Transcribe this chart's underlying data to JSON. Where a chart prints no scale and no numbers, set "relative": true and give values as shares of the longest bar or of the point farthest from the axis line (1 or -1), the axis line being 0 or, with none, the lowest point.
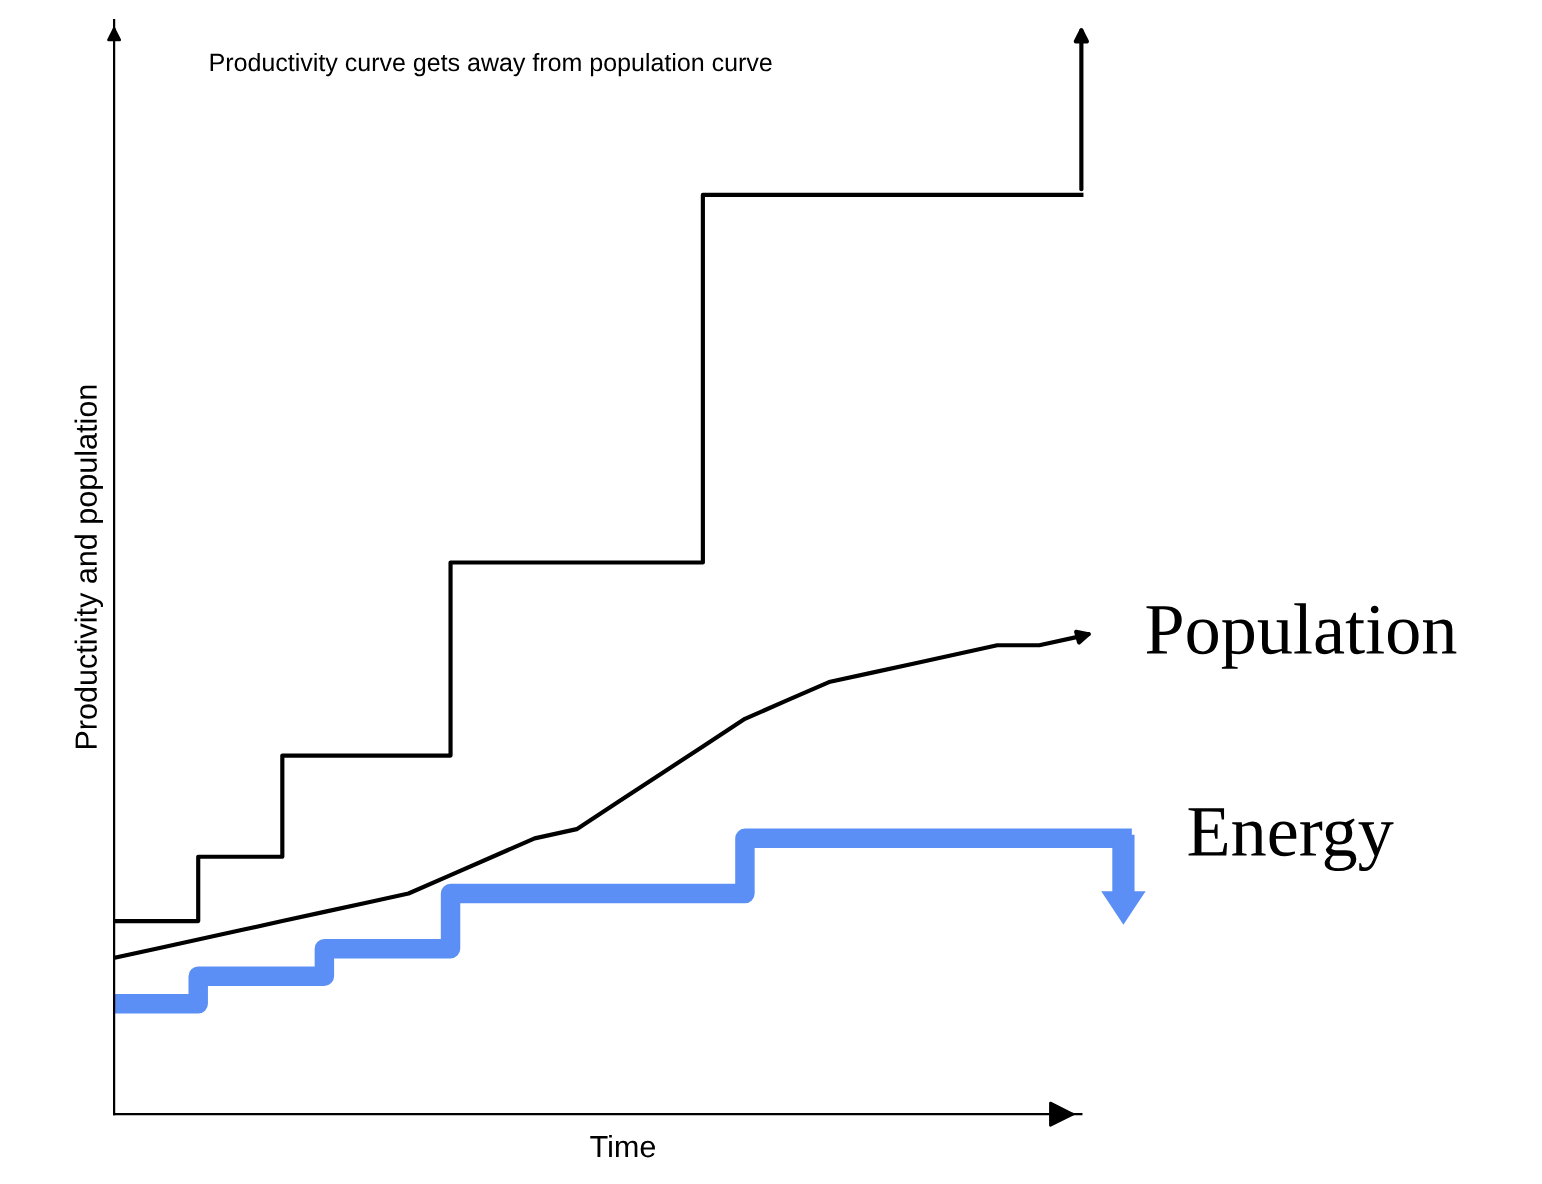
{
  "chart_data": {
    "type": "step",
    "relative": true,
    "xlabel": "Time",
    "ylabel": "Productivity and population",
    "annotations": [
      "Productivity curve gets away from population curve"
    ],
    "categories": [
      null,
      null,
      null,
      null,
      null,
      null,
      null,
      null,
      null,
      null,
      null,
      null,
      null,
      null,
      null,
      null,
      null,
      null,
      null,
      null,
      null,
      null,
      null,
      null,
      null
    ],
    "legend": "right",
    "marker": "none",
    "line_style": "solid",
    "series": [
      {
        "color": "#000000",
        "values": [
          0.21,
          0.21,
          0.28,
          0.28,
          0.39,
          0.39,
          0.39,
          0.39,
          0.6,
          0.6,
          0.6,
          0.6,
          0.6,
          0.6,
          1.0,
          1.0,
          1.0,
          1.0,
          1.0,
          1.0,
          1.0,
          1.0,
          1.0,
          1.0,
          null
        ]
      },
      {
        "type": "line",
        "name": "Population",
        "color": "#000000",
        "values": [
          0.17,
          0.18,
          0.19,
          0.2,
          0.21,
          0.22,
          0.23,
          0.24,
          0.26,
          0.28,
          0.3,
          0.31,
          0.34,
          0.37,
          0.4,
          0.43,
          0.45,
          0.47,
          0.48,
          0.49,
          0.5,
          0.51,
          0.51,
          0.52,
          null
        ]
      },
      {
        "name": "Energy",
        "color": "#5b8ff5",
        "values": [
          0.12,
          0.12,
          0.15,
          0.15,
          0.15,
          0.18,
          0.18,
          0.18,
          0.24,
          0.24,
          0.24,
          0.24,
          0.24,
          0.24,
          0.24,
          0.3,
          0.3,
          0.3,
          0.3,
          0.3,
          0.3,
          0.3,
          0.3,
          0.3,
          0.3
        ]
      }
    ]
  }
}
